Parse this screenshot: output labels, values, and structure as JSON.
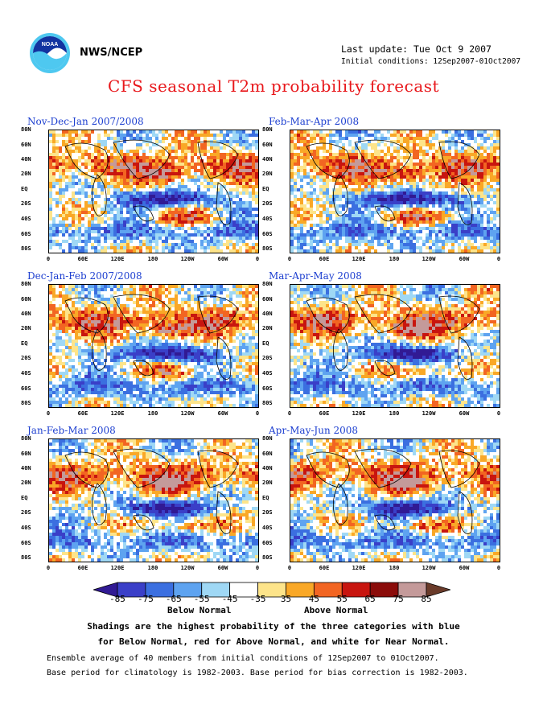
{
  "header": {
    "agency": "NWS/NCEP",
    "last_update": "Last update: Tue Oct 9 2007",
    "initial_conditions": "Initial conditions: 12Sep2007-01Oct2007",
    "title": "CFS seasonal T2m probability forecast"
  },
  "axes": {
    "lat_labels": [
      "80N",
      "60N",
      "40N",
      "20N",
      "EQ",
      "20S",
      "40S",
      "60S",
      "80S"
    ],
    "lon_labels": [
      "0",
      "60E",
      "120E",
      "180",
      "120W",
      "60W",
      "0"
    ]
  },
  "panels": [
    {
      "title": "Nov-Dec-Jan 2007/2008"
    },
    {
      "title": "Feb-Mar-Apr 2008"
    },
    {
      "title": "Dec-Jan-Feb 2007/2008"
    },
    {
      "title": "Mar-Apr-May 2008"
    },
    {
      "title": "Jan-Feb-Mar 2008"
    },
    {
      "title": "Apr-May-Jun 2008"
    }
  ],
  "colorbar": {
    "labels": [
      "-85",
      "-75",
      "-65",
      "-55",
      "-45",
      "-35",
      "35",
      "45",
      "55",
      "65",
      "75",
      "85"
    ],
    "colors": [
      "#311a94",
      "#3a3fc8",
      "#3b6fe0",
      "#5ea3f0",
      "#9fd8f5",
      "#ffffff",
      "#fde48a",
      "#f9a827",
      "#f26522",
      "#c8150f",
      "#8b0c0a",
      "#c49a9a",
      "#6a3b2a"
    ],
    "below_label": "Below Normal",
    "above_label": "Above Normal"
  },
  "notes": {
    "shading_line1": "Shadings are the highest probability of the three categories with blue",
    "shading_line2": "for Below Normal, red for Above Normal, and white for Near Normal.",
    "ensemble_line1": "Ensemble average of 40 members from initial conditions of 12Sep2007 to 01Oct2007.",
    "ensemble_line2": "Base period for climatology is 1982-2003. Base period for bias correction is 1982-2003."
  }
}
